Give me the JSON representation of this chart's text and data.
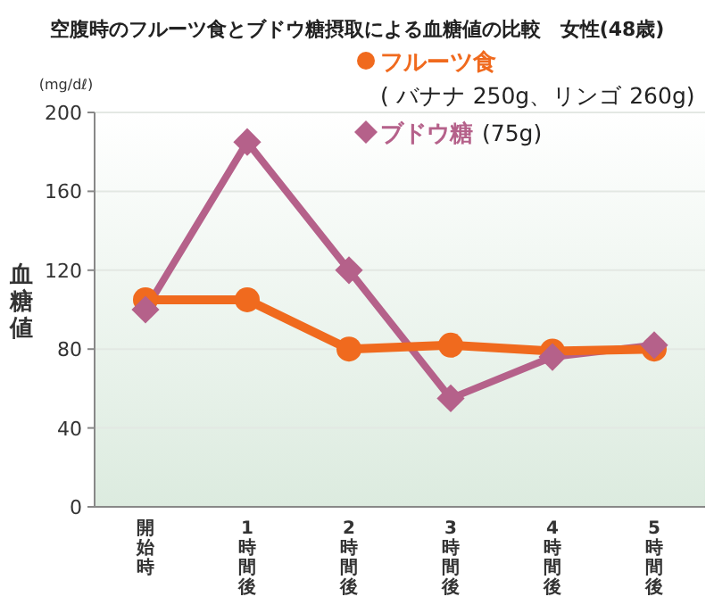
{
  "chart_data": {
    "type": "line",
    "title": "空腹時のフルーツ食とブドウ糖摂取による血糖値の比較　女性(48歳)",
    "ylabel": "血糖値",
    "annotations": [
      "(mg/dℓ)",
      "( バナナ 250g、リンゴ 260g)",
      "(75g)"
    ],
    "categories": [
      "開始時",
      "1時間後",
      "2時間後",
      "3時間後",
      "4時間後",
      "5時間後"
    ],
    "series": [
      {
        "name": "フルーツ食",
        "color": "#f06a1e",
        "marker": "circle",
        "values": [
          105,
          105,
          80,
          82,
          79,
          80
        ]
      },
      {
        "name": "ブドウ糖",
        "color": "#b5618a",
        "marker": "diamond",
        "values": [
          100,
          185,
          120,
          55,
          76,
          82
        ]
      }
    ],
    "ylim": [
      0,
      200
    ],
    "yticks": [
      0,
      40,
      80,
      120,
      160,
      200
    ],
    "grid": "y",
    "legend": "top right"
  }
}
